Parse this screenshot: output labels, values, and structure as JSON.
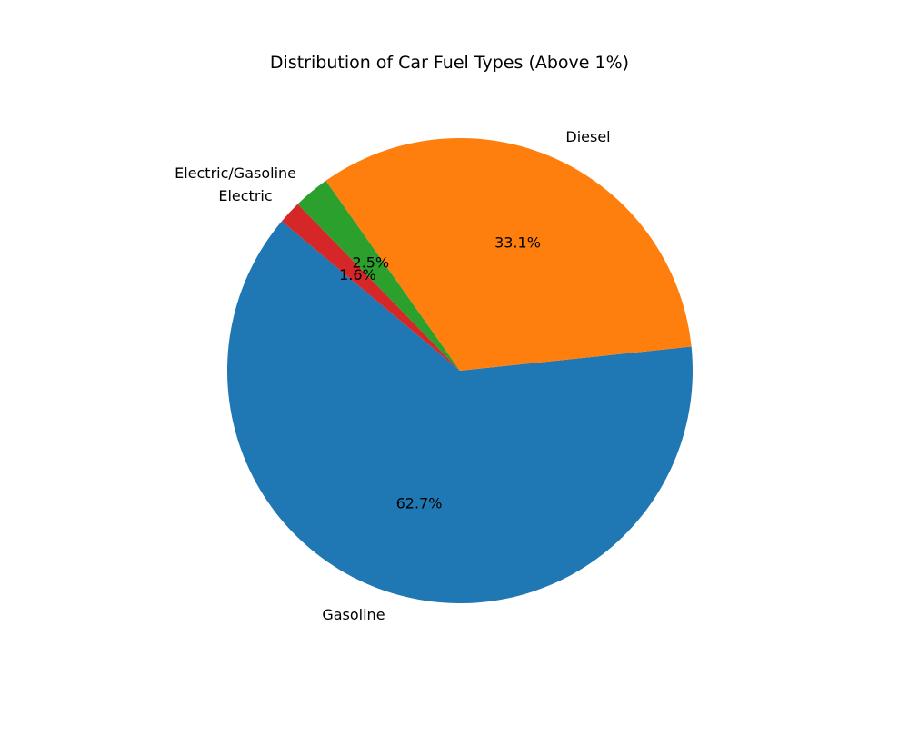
{
  "chart_data": {
    "type": "pie",
    "title": "Distribution of Car Fuel Types (Above 1%)",
    "slices": [
      {
        "label": "Gasoline",
        "value": 62.7,
        "pct_label": "62.7%",
        "color": "#1f77b4"
      },
      {
        "label": "Diesel",
        "value": 33.1,
        "pct_label": "33.1%",
        "color": "#ff7f0e"
      },
      {
        "label": "Electric/Gasoline",
        "value": 2.5,
        "pct_label": "2.5%",
        "color": "#2ca02c"
      },
      {
        "label": "Electric",
        "value": 1.6,
        "pct_label": "1.6%",
        "color": "#d62728"
      }
    ],
    "start_angle_deg": 140,
    "direction": "counterclockwise"
  }
}
